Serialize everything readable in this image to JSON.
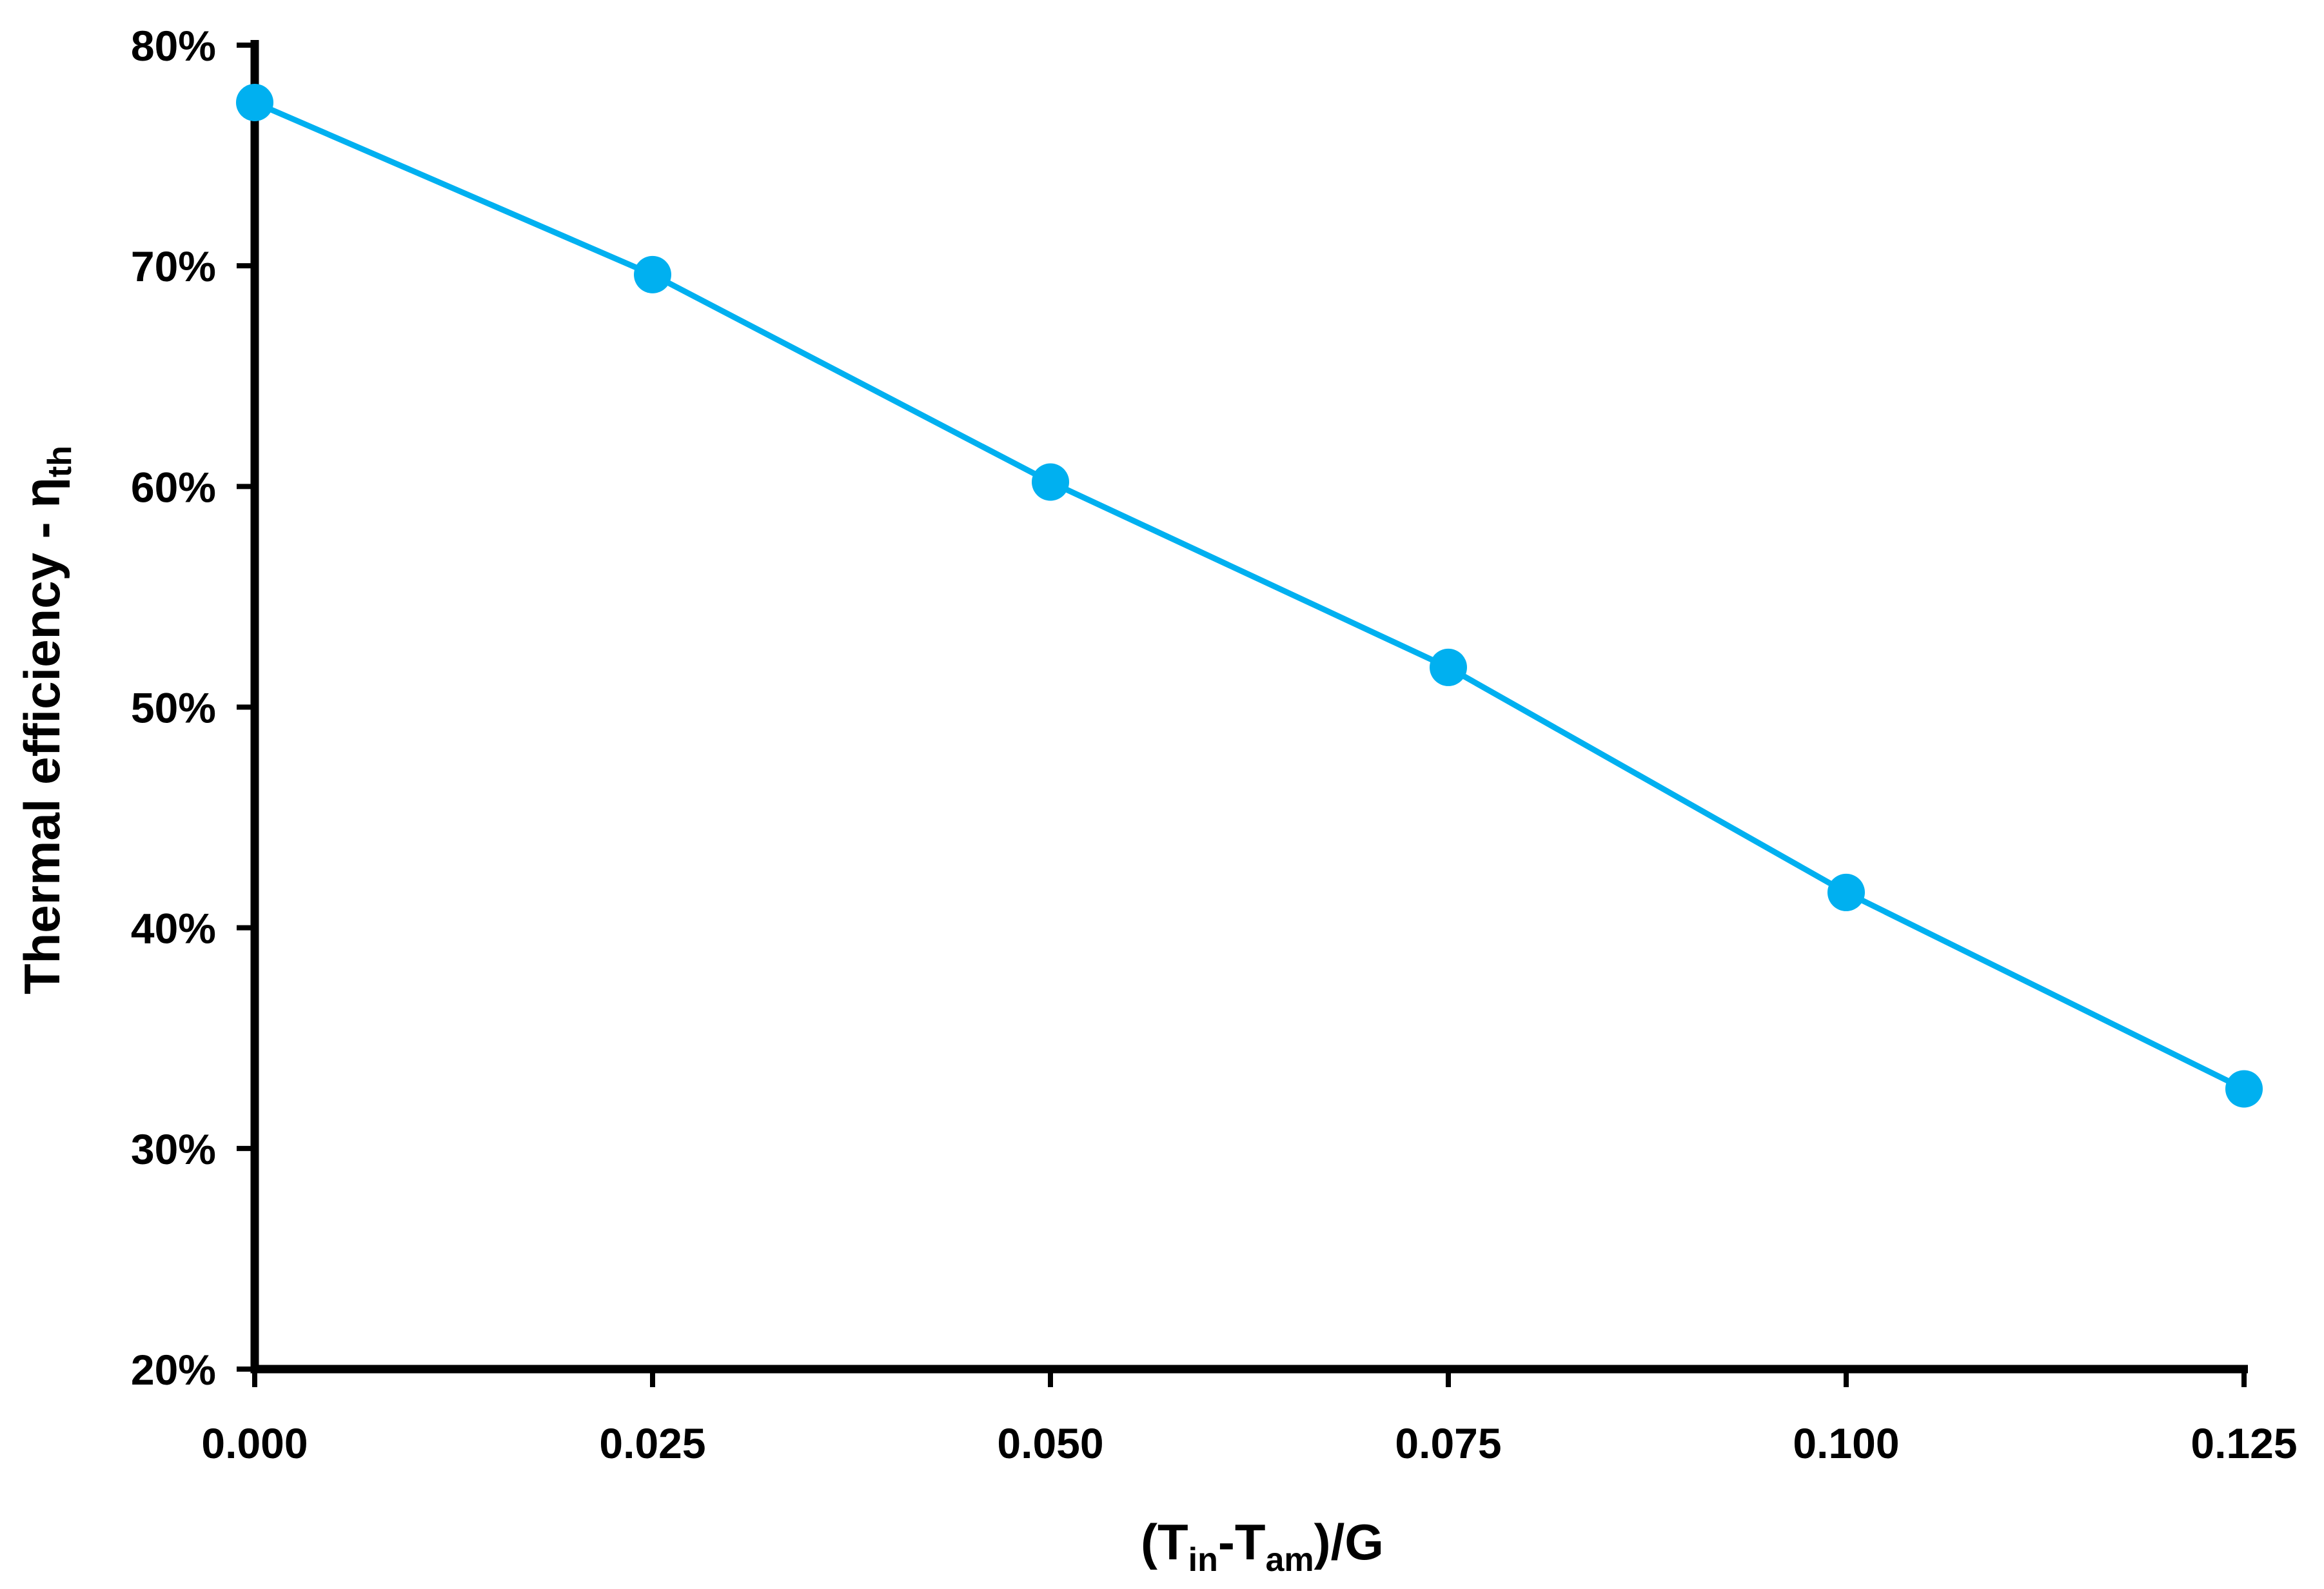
{
  "chart_data": {
    "type": "line",
    "title": "",
    "xlabel": {
      "parts": [
        {
          "text": "(T",
          "sub": false
        },
        {
          "text": "in",
          "sub": true
        },
        {
          "text": "-T",
          "sub": false
        },
        {
          "text": "am",
          "sub": true
        },
        {
          "text": ")/G",
          "sub": false
        }
      ]
    },
    "ylabel": {
      "parts": [
        {
          "text": "Thermal efficiency - η",
          "sub": false
        },
        {
          "text": "th",
          "sub": true
        }
      ]
    },
    "xlim": [
      0,
      0.125
    ],
    "ylim": [
      0.2,
      0.8
    ],
    "x_ticks": [
      0,
      0.025,
      0.05,
      0.075,
      0.1,
      0.125
    ],
    "x_tick_labels": [
      "0.000",
      "0.025",
      "0.050",
      "0.075",
      "0.100",
      "0.125"
    ],
    "y_ticks": [
      0.2,
      0.3,
      0.4,
      0.5,
      0.6,
      0.7,
      0.8
    ],
    "y_tick_labels": [
      "20%",
      "30%",
      "40%",
      "50%",
      "60%",
      "70%",
      "80%"
    ],
    "grid": false,
    "legend": "none",
    "series": [
      {
        "color": "#00B0F0",
        "marker": "circle",
        "x": [
          0,
          0.025,
          0.05,
          0.075,
          0.1,
          0.125
        ],
        "y": [
          0.774,
          0.696,
          0.602,
          0.518,
          0.416,
          0.327
        ]
      }
    ]
  }
}
